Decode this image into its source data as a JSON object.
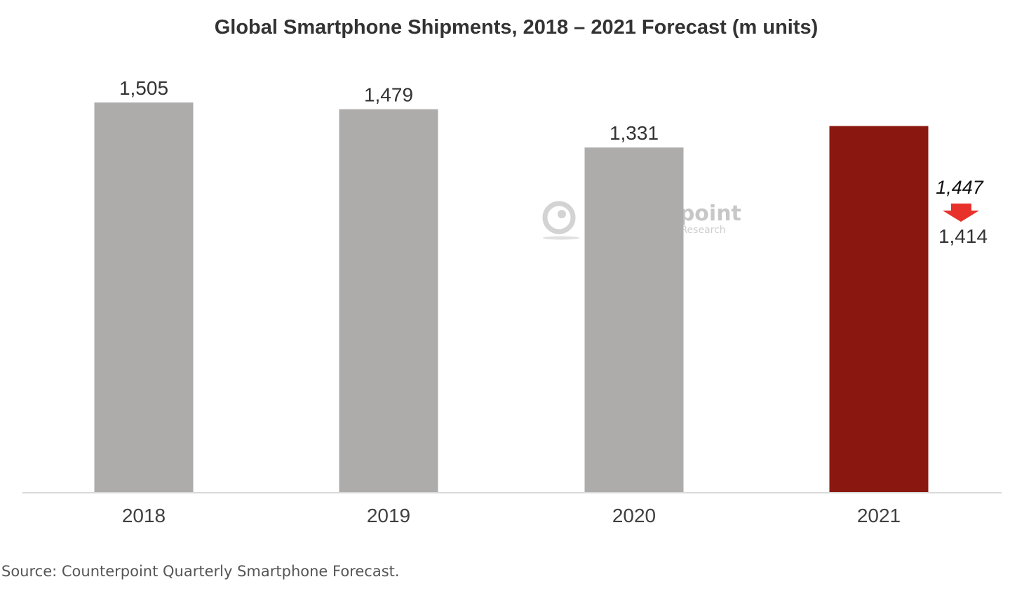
{
  "chart_data": {
    "type": "bar",
    "title": "Global Smartphone Shipments, 2018 – 2021 Forecast (m units)",
    "categories": [
      "2018",
      "2019",
      "2020",
      "2021"
    ],
    "values": [
      1505,
      1479,
      1331,
      1414
    ],
    "value_labels": [
      "1,505",
      "1,479",
      "1,331",
      "1,414"
    ],
    "previous_forecast": {
      "category": "2021",
      "value": 1447,
      "label": "1,447"
    },
    "xlabel": "",
    "ylabel": "",
    "ylim": [
      0,
      1505
    ],
    "grid": false,
    "colors": {
      "actual": "#ADACAB",
      "forecast": "#8B1810",
      "previous_forecast_outline": "#9A9A9A",
      "down_arrow": "#E8312B",
      "baseline": "#D9D9D9"
    }
  },
  "watermark": {
    "name": "Counterpoint",
    "tagline": "Technology Market Research"
  },
  "source": "Source: Counterpoint Quarterly Smartphone Forecast."
}
